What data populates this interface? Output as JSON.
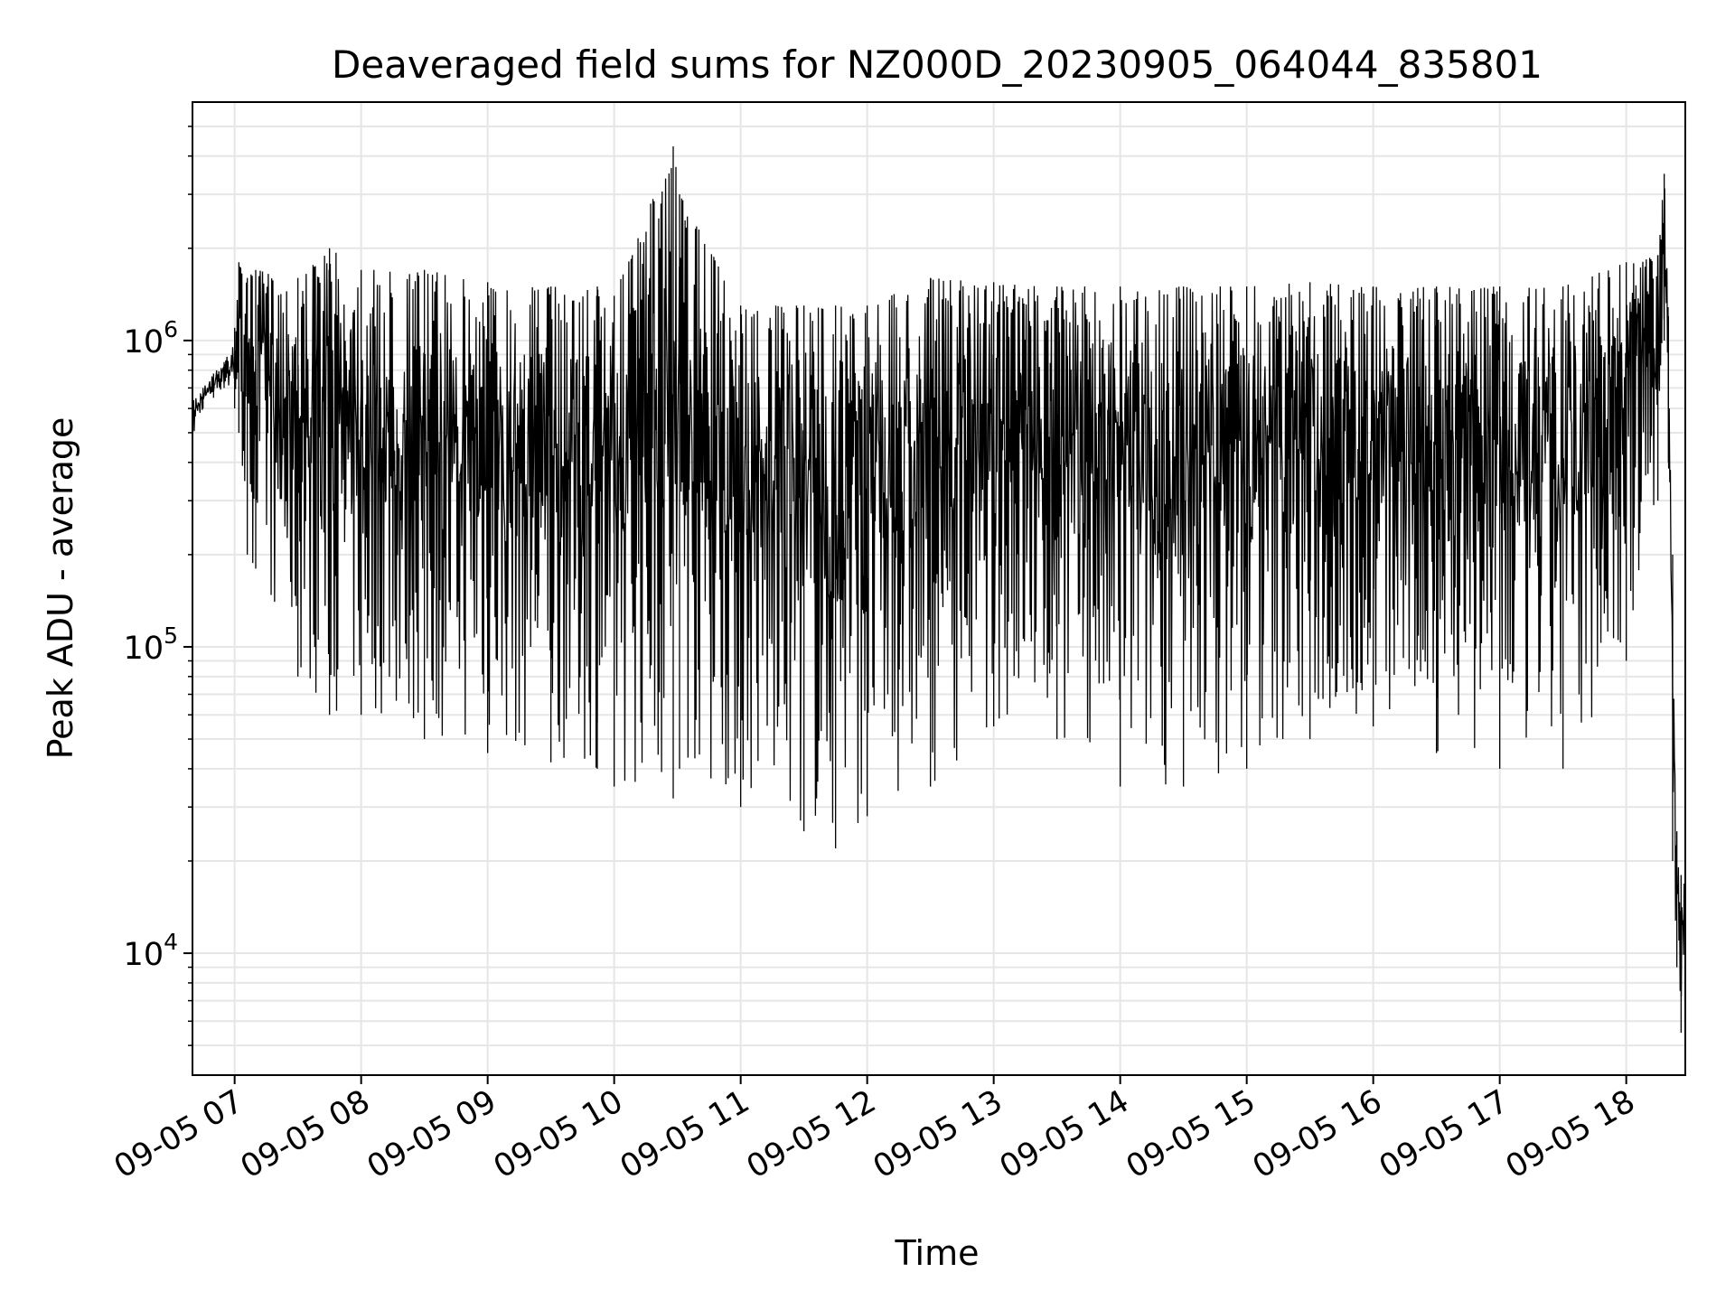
{
  "chart_data": {
    "type": "line",
    "title": "Deaveraged field sums for NZ000D_20230905_064044_835801",
    "xlabel": "Time",
    "ylabel": "Peak ADU - average",
    "x_ticks": [
      "09-05 07",
      "09-05 08",
      "09-05 09",
      "09-05 10",
      "09-05 11",
      "09-05 12",
      "09-05 13",
      "09-05 14",
      "09-05 15",
      "09-05 16",
      "09-05 17",
      "09-05 18"
    ],
    "x_range": [
      "2023-09-05 06:40",
      "2023-09-05 18:28"
    ],
    "y_scale": "log",
    "ylim": [
      4000,
      6000000
    ],
    "y_ticks": [
      {
        "base": "10",
        "exp": "4",
        "value": 10000
      },
      {
        "base": "10",
        "exp": "5",
        "value": 100000
      },
      {
        "base": "10",
        "exp": "6",
        "value": 1000000
      }
    ],
    "grid": true,
    "line_color": "#000000",
    "grid_color": "#e6e6e6",
    "series": [
      {
        "x": [
          "2023-09-05 06:40",
          "2023-09-05 06:45",
          "2023-09-05 06:50",
          "2023-09-05 06:55",
          "2023-09-05 07:00",
          "2023-09-05 07:02",
          "2023-09-05 07:06",
          "2023-09-05 07:10",
          "2023-09-05 07:30",
          "2023-09-05 07:45",
          "2023-09-05 08:00",
          "2023-09-05 08:30",
          "2023-09-05 09:00",
          "2023-09-05 09:30",
          "2023-09-05 09:52",
          "2023-09-05 10:00",
          "2023-09-05 10:28",
          "2023-09-05 10:31",
          "2023-09-05 11:00",
          "2023-09-05 11:30",
          "2023-09-05 11:45",
          "2023-09-05 12:00",
          "2023-09-05 12:30",
          "2023-09-05 13:00",
          "2023-09-05 13:30",
          "2023-09-05 14:00",
          "2023-09-05 14:30",
          "2023-09-05 15:00",
          "2023-09-05 15:30",
          "2023-09-05 16:00",
          "2023-09-05 16:30",
          "2023-09-05 17:00",
          "2023-09-05 17:30",
          "2023-09-05 18:00",
          "2023-09-05 18:15",
          "2023-09-05 18:18",
          "2023-09-05 18:20",
          "2023-09-05 18:22",
          "2023-09-05 18:24",
          "2023-09-05 18:26",
          "2023-09-05 18:28"
        ],
        "y_high": [
          650000,
          700000,
          780000,
          850000,
          1100000,
          1800000,
          1600000,
          1700000,
          1600000,
          2000000,
          1700000,
          1700000,
          1550000,
          1500000,
          1500000,
          1400000,
          4300000,
          3000000,
          1300000,
          1300000,
          1300000,
          1300000,
          1600000,
          1550000,
          1500000,
          1500000,
          1500000,
          1500000,
          1550000,
          1500000,
          1500000,
          1500000,
          1500000,
          1800000,
          1900000,
          3500000,
          1200000,
          200000,
          25000,
          18000,
          17000
        ],
        "y_low": [
          450000,
          600000,
          650000,
          700000,
          600000,
          500000,
          200000,
          180000,
          80000,
          60000,
          60000,
          50000,
          45000,
          42000,
          40000,
          35000,
          32000,
          40000,
          30000,
          25000,
          22000,
          28000,
          35000,
          55000,
          50000,
          35000,
          35000,
          40000,
          50000,
          55000,
          45000,
          40000,
          40000,
          90000,
          300000,
          1000000,
          400000,
          20000,
          9000,
          5500,
          12000
        ]
      }
    ]
  }
}
